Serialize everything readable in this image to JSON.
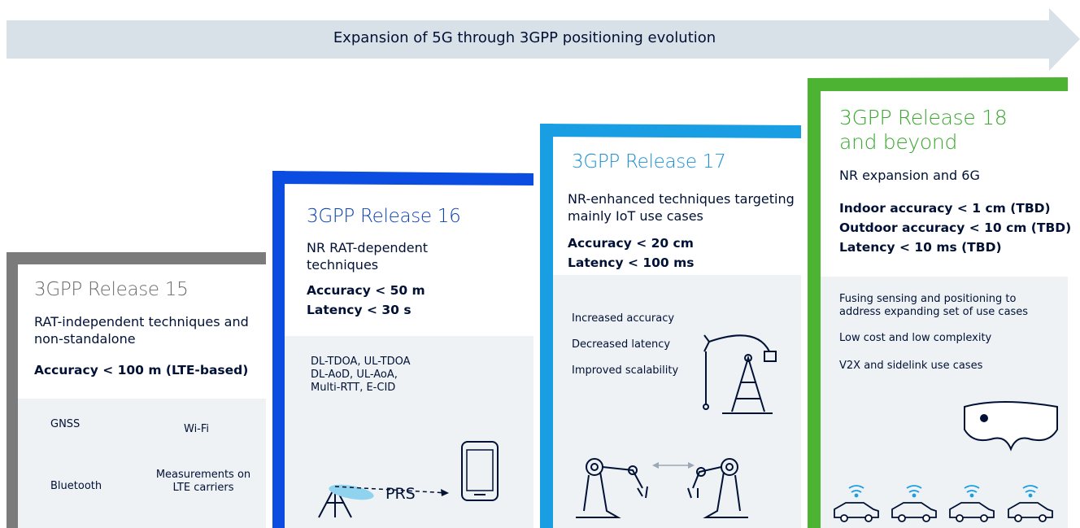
{
  "banner": "Expansion of 5G through 3GPP positioning evolution",
  "releases": [
    {
      "title": "3GPP Release 15",
      "subtitle": "RAT-independent techniques and non-standalone",
      "metrics": [
        "Accuracy < 100 m (LTE-based)"
      ],
      "features": [
        "GNSS",
        "Wi-Fi",
        "Bluetooth",
        "Measurements on LTE carriers"
      ]
    },
    {
      "title": "3GPP Release 16",
      "subtitle": "NR RAT-dependent techniques",
      "metrics": [
        "Accuracy < 50 m",
        "Latency < 30 s"
      ],
      "features": [
        "DL-TDOA, UL-TDOA",
        "DL-AoD, UL-AoA,",
        "Multi-RTT, E-CID"
      ],
      "diagram_label": "PRS"
    },
    {
      "title": "3GPP Release 17",
      "subtitle": "NR-enhanced techniques targeting mainly IoT use cases",
      "metrics": [
        "Accuracy < 20 cm",
        "Latency < 100 ms"
      ],
      "features": [
        "Increased accuracy",
        "Decreased latency",
        "Improved scalability"
      ]
    },
    {
      "title": "3GPP Release 18 and beyond",
      "subtitle": "NR expansion and 6G",
      "metrics": [
        "Indoor accuracy < 1 cm (TBD)",
        "Outdoor accuracy < 10 cm (TBD)",
        "Latency < 10 ms (TBD)"
      ],
      "features": [
        "Fusing sensing and positioning to address expanding set of use cases",
        "Low cost and low complexity",
        "V2X and sidelink use cases"
      ]
    }
  ]
}
